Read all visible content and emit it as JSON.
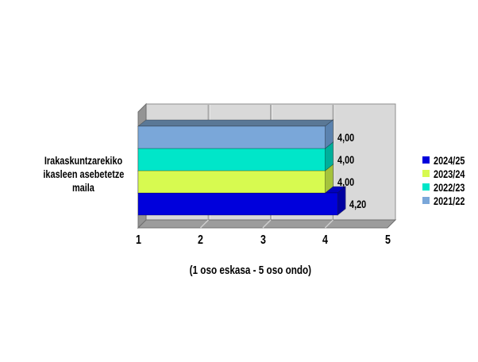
{
  "chart_data": {
    "type": "bar",
    "orientation": "horizontal",
    "categories": [
      "Irakaskuntzarekiko ikasleen asebetetze maila"
    ],
    "category_lines": [
      "Irakaskuntzarekiko",
      "ikasleen asebetetze",
      "maila"
    ],
    "series": [
      {
        "name": "2024/25",
        "value": 4.2,
        "label": "4,20",
        "color": "#0000DC",
        "top_color": "#0000BE",
        "side_color": "#0000A0"
      },
      {
        "name": "2023/24",
        "value": 4.0,
        "label": "4,00",
        "color": "#D7FA50",
        "top_color": "#B9D845",
        "side_color": "#A5C33C"
      },
      {
        "name": "2022/23",
        "value": 4.0,
        "label": "4,00",
        "color": "#00E6C9",
        "top_color": "#00C2AA",
        "side_color": "#00AF9B"
      },
      {
        "name": "2021/22",
        "value": 4.0,
        "label": "4,00",
        "color": "#7AA7D9",
        "top_color": "#5A7896",
        "side_color": "#5A82AF"
      }
    ],
    "x_ticks": [
      "1",
      "2",
      "3",
      "4",
      "5"
    ],
    "xlabel": "(1 oso eskasa - 5 oso ondo)",
    "xlim": [
      1,
      5
    ],
    "grid": true,
    "legend_position": "right"
  },
  "palette": {
    "background": "#FFFFFF",
    "wall": "#D9D9D9",
    "wall_border": "#8E8E8E",
    "grid_line": "#A9A9A9",
    "grid_highlight": "#ECECEC",
    "side_wall": "#949494",
    "floor": "#9C9C9C",
    "floor_tick": "#CFCFCF",
    "edge": "#6F6F6F",
    "text": "#000000"
  }
}
